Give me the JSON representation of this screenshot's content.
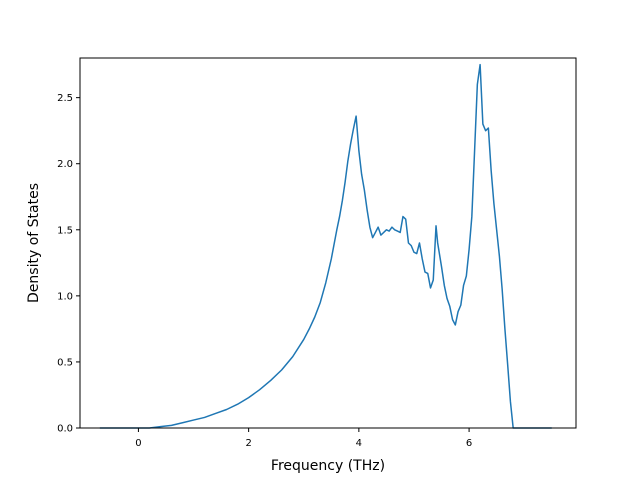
{
  "chart_data": {
    "type": "line",
    "title": "",
    "xlabel": "Frequency (THz)",
    "ylabel": "Density of States",
    "xlim": [
      -1.06,
      7.94
    ],
    "ylim": [
      0,
      2.8
    ],
    "xticks": [
      0,
      2,
      4,
      6
    ],
    "yticks": [
      0.0,
      0.5,
      1.0,
      1.5,
      2.0,
      2.5
    ],
    "xtick_labels": [
      "0",
      "2",
      "4",
      "6"
    ],
    "ytick_labels": [
      "0.0",
      "0.5",
      "1.0",
      "1.5",
      "2.0",
      "2.5"
    ],
    "grid": false,
    "series": [
      {
        "color": "#1f77b4",
        "x": [
          -0.7,
          -0.2,
          0.2,
          0.4,
          0.6,
          0.8,
          1.0,
          1.2,
          1.4,
          1.6,
          1.8,
          2.0,
          2.2,
          2.4,
          2.6,
          2.8,
          3.0,
          3.1,
          3.2,
          3.3,
          3.4,
          3.5,
          3.6,
          3.65,
          3.7,
          3.75,
          3.8,
          3.85,
          3.9,
          3.95,
          4.0,
          4.05,
          4.1,
          4.15,
          4.2,
          4.25,
          4.3,
          4.35,
          4.4,
          4.5,
          4.55,
          4.6,
          4.65,
          4.7,
          4.75,
          4.8,
          4.85,
          4.9,
          4.95,
          5.0,
          5.05,
          5.1,
          5.15,
          5.2,
          5.25,
          5.3,
          5.35,
          5.4,
          5.43,
          5.5,
          5.55,
          5.6,
          5.65,
          5.7,
          5.75,
          5.8,
          5.85,
          5.9,
          5.95,
          6.0,
          6.05,
          6.1,
          6.15,
          6.2,
          6.25,
          6.3,
          6.35,
          6.4,
          6.45,
          6.5,
          6.55,
          6.6,
          6.65,
          6.7,
          6.75,
          6.8,
          6.85,
          6.9,
          7.0,
          7.5
        ],
        "y": [
          0.0,
          0.0,
          0.0,
          0.01,
          0.02,
          0.04,
          0.06,
          0.08,
          0.11,
          0.14,
          0.18,
          0.23,
          0.29,
          0.36,
          0.44,
          0.54,
          0.67,
          0.75,
          0.84,
          0.95,
          1.1,
          1.28,
          1.5,
          1.6,
          1.72,
          1.86,
          2.02,
          2.15,
          2.26,
          2.36,
          2.1,
          1.92,
          1.8,
          1.65,
          1.52,
          1.44,
          1.48,
          1.52,
          1.46,
          1.5,
          1.49,
          1.52,
          1.5,
          1.49,
          1.48,
          1.6,
          1.58,
          1.4,
          1.38,
          1.33,
          1.32,
          1.4,
          1.28,
          1.18,
          1.17,
          1.06,
          1.12,
          1.53,
          1.4,
          1.22,
          1.08,
          0.98,
          0.92,
          0.82,
          0.78,
          0.88,
          0.93,
          1.08,
          1.15,
          1.35,
          1.6,
          2.1,
          2.6,
          2.75,
          2.3,
          2.25,
          2.27,
          1.95,
          1.7,
          1.5,
          1.3,
          1.05,
          0.75,
          0.48,
          0.2,
          0.0,
          0.0,
          0.0,
          0.0,
          0.0
        ]
      }
    ]
  }
}
